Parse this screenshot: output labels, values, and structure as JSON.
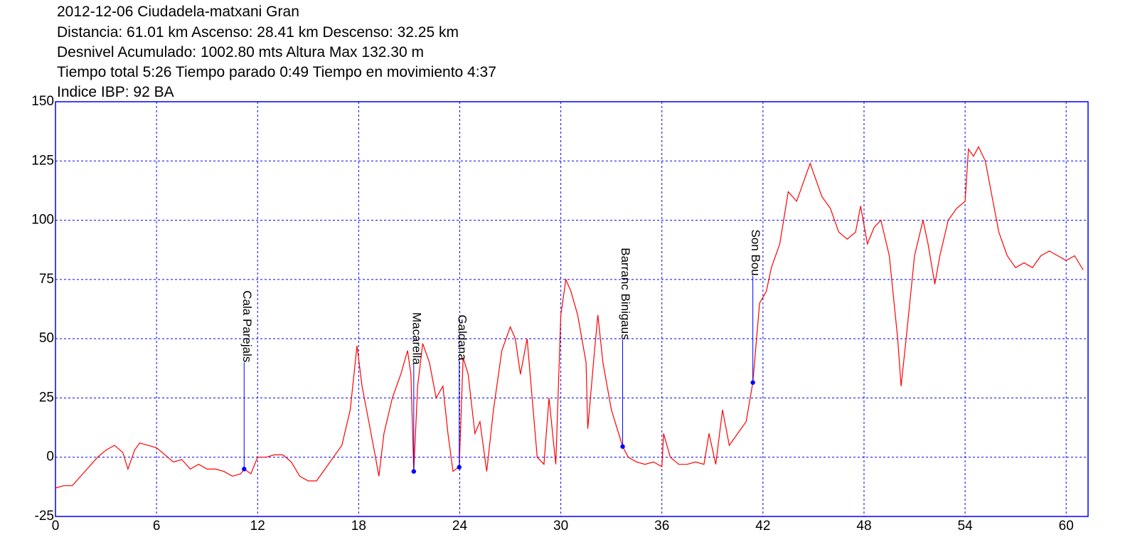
{
  "chart_data": {
    "type": "line",
    "title": "2012-12-06 Ciudadela-matxani Gran",
    "subtitle": [
      "Distancia: 61.01 km Ascenso: 28.41 km Descenso: 32.25 km",
      "Desnivel Acumulado: 1002.80 mts  Altura Max 132.30 m",
      "Tiempo total 5:26 Tiempo parado 0:49 Tiempo en movimiento 4:37",
      "Indice IBP: 92 BA"
    ],
    "color": "#ff0000",
    "grid": true,
    "grid_color": "#0000ff",
    "marker_color": "#0000ff",
    "xlim": [
      0,
      61.3
    ],
    "ylim": [
      -25,
      150
    ],
    "xticks": [
      0,
      6,
      12,
      18,
      24,
      30,
      36,
      42,
      48,
      54,
      60
    ],
    "yticks": [
      -25,
      0,
      25,
      50,
      75,
      100,
      125,
      150
    ],
    "x": [
      0,
      0.5,
      1,
      1.5,
      2,
      2.5,
      3,
      3.5,
      4,
      4.3,
      4.7,
      5,
      5.5,
      6,
      6.5,
      7,
      7.5,
      8,
      8.5,
      9,
      9.5,
      10,
      10.5,
      11,
      11.2,
      11.6,
      12,
      12.5,
      13,
      13.5,
      14,
      14.5,
      15,
      15.5,
      16,
      16.5,
      17,
      17.5,
      17.9,
      18.2,
      18.6,
      19,
      19.2,
      19.5,
      20,
      20.5,
      20.9,
      21.1,
      21.27,
      21.5,
      21.8,
      22.2,
      22.6,
      23,
      23.3,
      23.6,
      23.97,
      24.2,
      24.5,
      24.9,
      25.2,
      25.6,
      26,
      26.5,
      27,
      27.3,
      27.6,
      28,
      28.3,
      28.6,
      29,
      29.3,
      29.7,
      30,
      30.3,
      30.6,
      31,
      31.5,
      31.6,
      32,
      32.2,
      32.5,
      33,
      33.67,
      34,
      34.5,
      35,
      35.5,
      36,
      36.1,
      36.5,
      37,
      37.5,
      38,
      38.5,
      38.8,
      39.2,
      39.6,
      40,
      40.5,
      41,
      41.4,
      41.8,
      42.2,
      42.5,
      43,
      43.5,
      44,
      44.5,
      44.8,
      45,
      45.5,
      46,
      46.5,
      47,
      47.5,
      47.8,
      48.2,
      48.6,
      49,
      49.5,
      50,
      50.2,
      50.5,
      51,
      51.5,
      51.8,
      52.2,
      52.5,
      53,
      53.5,
      54,
      54.2,
      54.5,
      54.8,
      55.2,
      55.6,
      56,
      56.5,
      57,
      57.5,
      58,
      58.5,
      59,
      59.5,
      60,
      60.5,
      61.01
    ],
    "values": [
      -13,
      -12,
      -12,
      -8,
      -4,
      0,
      3,
      5,
      2,
      -5,
      3,
      6,
      5,
      4,
      1,
      -2,
      -1,
      -5,
      -3,
      -5,
      -5,
      -6,
      -8,
      -7,
      -5,
      -7,
      0,
      0,
      1,
      1,
      -2,
      -8,
      -10,
      -10,
      -5,
      0,
      5,
      20,
      47,
      30,
      15,
      0,
      -8,
      10,
      25,
      35,
      45,
      35,
      -6,
      30,
      48,
      40,
      25,
      30,
      10,
      -6,
      -4,
      42,
      35,
      10,
      15,
      -6,
      20,
      45,
      55,
      50,
      35,
      50,
      25,
      0,
      -3,
      25,
      -3,
      60,
      75,
      70,
      60,
      40,
      12,
      45,
      60,
      40,
      20,
      4.5,
      0,
      -2,
      -3,
      -2,
      -4,
      10,
      0,
      -3,
      -3,
      -2,
      -3,
      10,
      -3,
      20,
      5,
      10,
      15,
      31.5,
      65,
      70,
      80,
      90,
      112,
      108,
      118,
      124,
      120,
      110,
      105,
      95,
      92,
      95,
      106,
      90,
      97,
      100,
      85,
      50,
      30,
      50,
      85,
      100,
      90,
      73,
      85,
      100,
      105,
      108,
      130,
      127,
      131,
      125,
      110,
      95,
      85,
      80,
      82,
      80,
      85,
      87,
      85,
      83,
      85,
      79
    ],
    "annotations": [
      {
        "text": "Cala Parejals",
        "x": 11.2,
        "y": -5
      },
      {
        "text": "Macarella",
        "x": 21.27,
        "y": -6
      },
      {
        "text": "Galdana",
        "x": 23.97,
        "y": -4.2
      },
      {
        "text": "Barranc Binigaus",
        "x": 33.67,
        "y": 4.5
      },
      {
        "text": "Son Bou",
        "x": 41.4,
        "y": 31.5
      }
    ]
  }
}
